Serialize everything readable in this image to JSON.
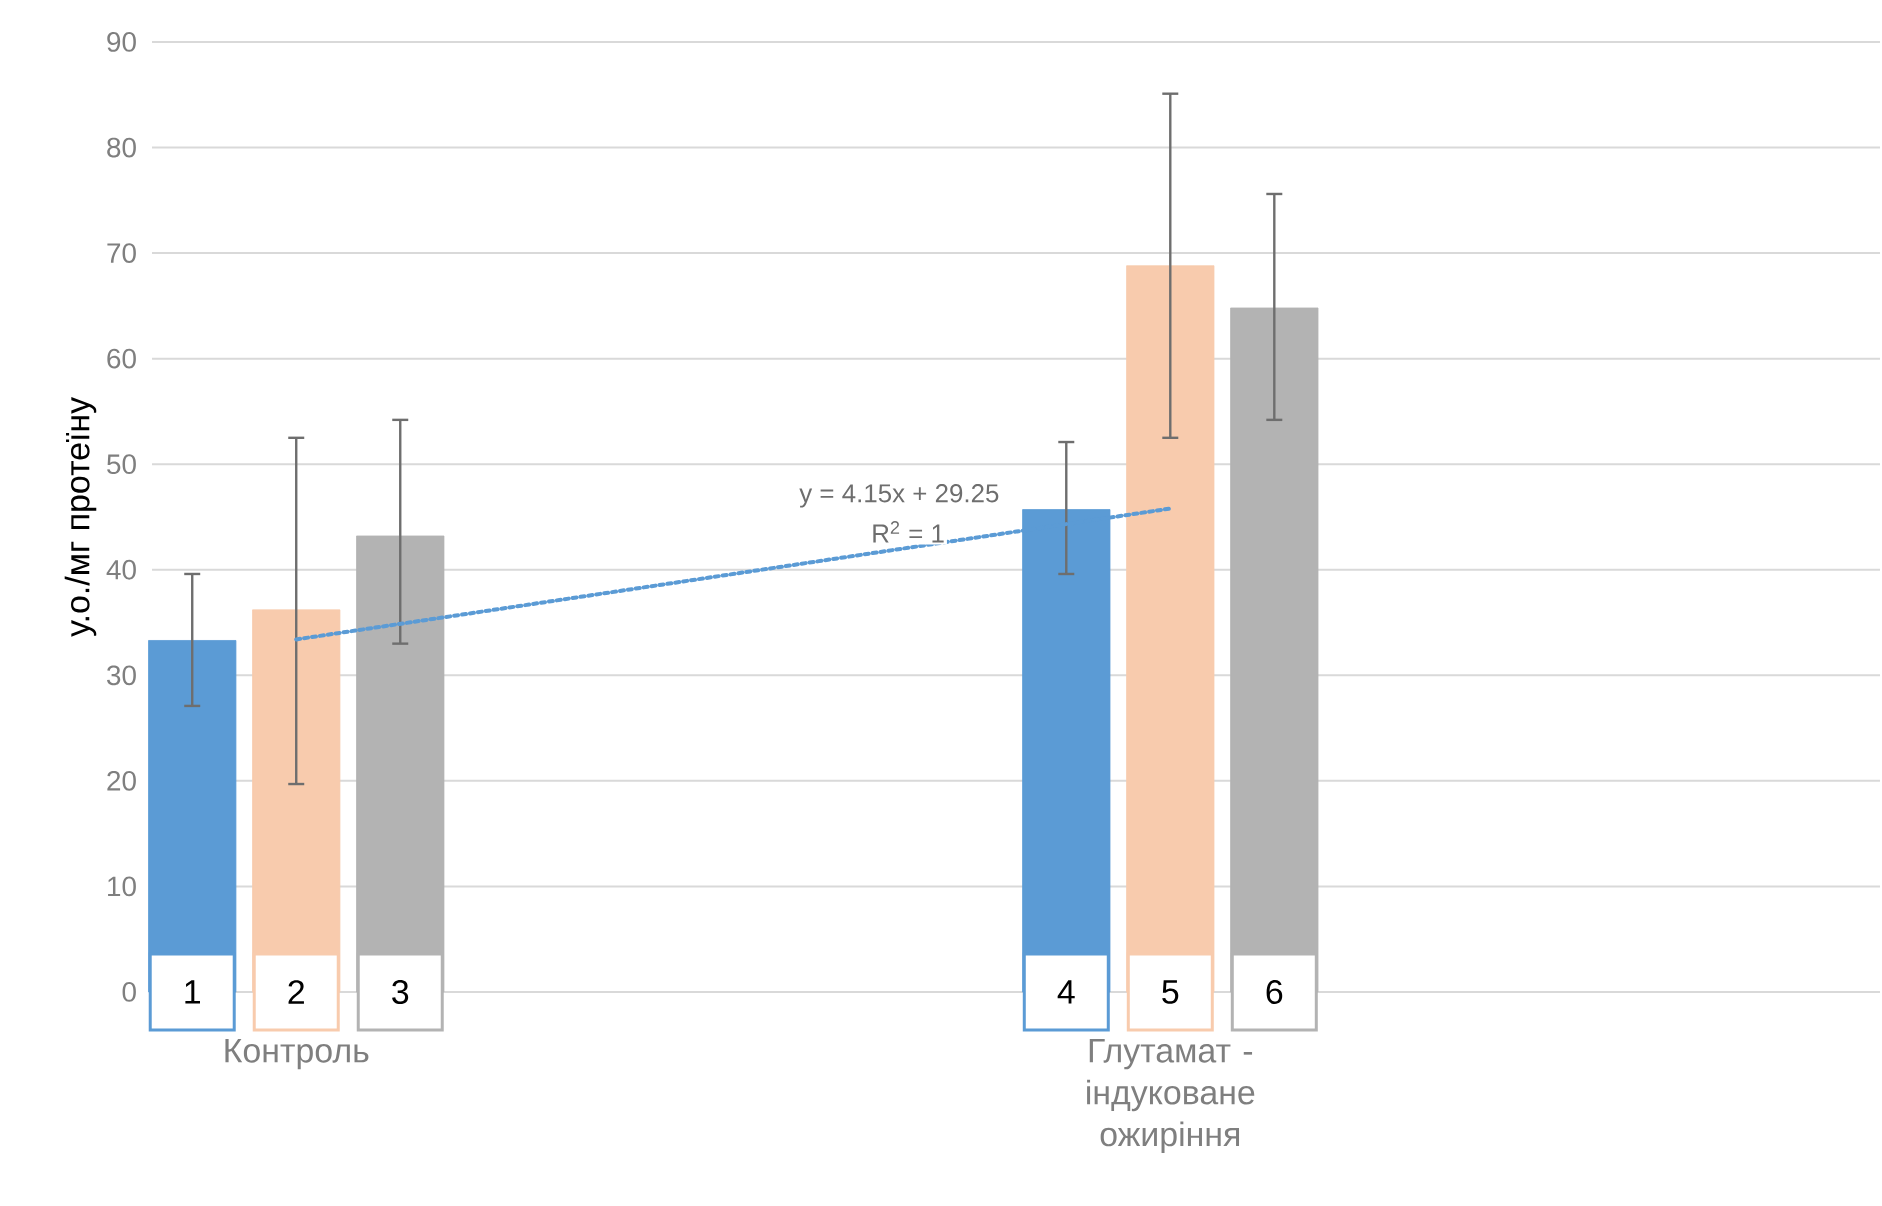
{
  "chart_data": {
    "type": "bar",
    "ylabel": "у.о./мг протеїну",
    "categories": [
      "Контроль",
      "Глутамат - індуковане ожиріння"
    ],
    "series": [
      {
        "color": "#5b9bd5",
        "values": [
          33.3,
          45.7
        ],
        "errors": [
          [
            27.1,
            39.6
          ],
          [
            39.6,
            52.1
          ]
        ]
      },
      {
        "color": "#f8cbad",
        "values": [
          36.2,
          68.8
        ],
        "errors": [
          [
            19.7,
            52.5
          ],
          [
            52.5,
            85.1
          ]
        ]
      },
      {
        "color": "#b3b3b3",
        "values": [
          43.2,
          64.8
        ],
        "errors": [
          [
            33.0,
            54.2
          ],
          [
            54.2,
            75.6
          ]
        ]
      },
      {
        "type": "line",
        "values": [
          33.4,
          45.8
        ],
        "color": "#5b9bd5",
        "line_style": "dotted"
      }
    ],
    "annotations": [
      "1",
      "2",
      "3",
      "4",
      "5",
      "6",
      "y = 4.15x + 29.25",
      "R$^{2}$ = 1"
    ],
    "ylim": [
      0,
      90
    ],
    "yticks": [
      0,
      10,
      20,
      30,
      40,
      50,
      60,
      70,
      80,
      90
    ],
    "grid": "y"
  }
}
